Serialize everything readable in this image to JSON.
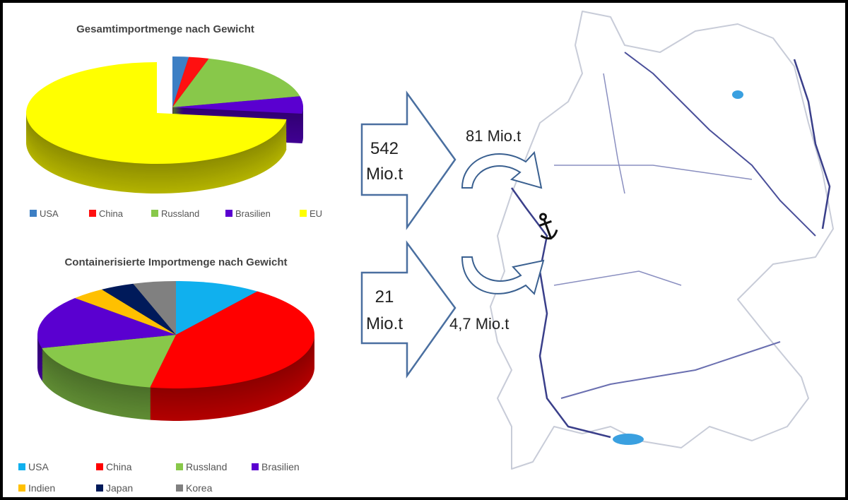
{
  "chart_data": [
    {
      "type": "pie",
      "title": "Gesamtimportmenge nach Gewicht",
      "categories": [
        "USA",
        "China",
        "Russland",
        "Brasilien",
        "EU"
      ],
      "values": [
        2,
        2.5,
        17,
        5.5,
        73
      ],
      "colors": [
        "#3d7fc4",
        "#ff1010",
        "#88c84a",
        "#5a00d0",
        "#ffff00"
      ],
      "exploded": [
        "EU"
      ],
      "legend": "bottom"
    },
    {
      "type": "pie",
      "title": "Containerisierte Importmenge nach Gewicht",
      "categories": [
        "USA",
        "China",
        "Russland",
        "Brasilien",
        "Indien",
        "Japan",
        "Korea"
      ],
      "values": [
        10,
        43,
        18,
        16,
        4,
        4,
        5
      ],
      "colors": [
        "#10b0ee",
        "#ff0000",
        "#88c84a",
        "#5a00d0",
        "#ffc000",
        "#001a5a",
        "#808080"
      ],
      "legend": "bottom"
    }
  ],
  "flows": {
    "total_in": {
      "value": "542",
      "unit": "Mio.t"
    },
    "container_in": {
      "value": "21",
      "unit": "Mio.t"
    },
    "total_transfer": "81 Mio.t",
    "container_transfer": "4,7 Mio.t"
  },
  "icons": {
    "port": "anchor-icon",
    "map": "germany-map"
  }
}
